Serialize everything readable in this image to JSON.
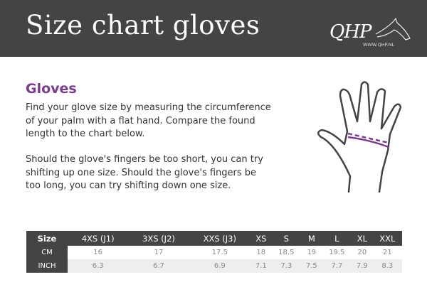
{
  "header": {
    "title": "Size chart gloves",
    "logo_text": "QHP",
    "logo_url": "WWW.QHP.NL"
  },
  "section": {
    "heading": "Gloves",
    "paragraph1": [
      "Find your glove size by measuring the circumference",
      "of your palm with a flat hand. Compare the found",
      "length to the chart below."
    ],
    "paragraph2": [
      "Should the glove's fingers be too short, you can try",
      "shifting up one size. Should the glove's fingers be",
      "too long, you can try shifting down one size."
    ]
  },
  "illustration": {
    "icon": "hand-measure-icon",
    "accent": "#7b3c8f"
  },
  "table": {
    "header": [
      "Size",
      "4XS (J1)",
      "3XS (J2)",
      "XXS (J3)",
      "XS",
      "S",
      "M",
      "L",
      "XL",
      "XXL"
    ],
    "rows": [
      {
        "label": "CM",
        "values": [
          "16",
          "17",
          "17.5",
          "18",
          "18.5",
          "19",
          "19.5",
          "20",
          "21"
        ]
      },
      {
        "label": "INCH",
        "values": [
          "6.3",
          "6.7",
          "6.9",
          "7.1",
          "7.3",
          "7.5",
          "7.7",
          "7.9",
          "8.3"
        ]
      }
    ]
  },
  "colors": {
    "header_bg": "#444444",
    "accent": "#7b3c8f",
    "row_alt": "#eeeeee"
  }
}
